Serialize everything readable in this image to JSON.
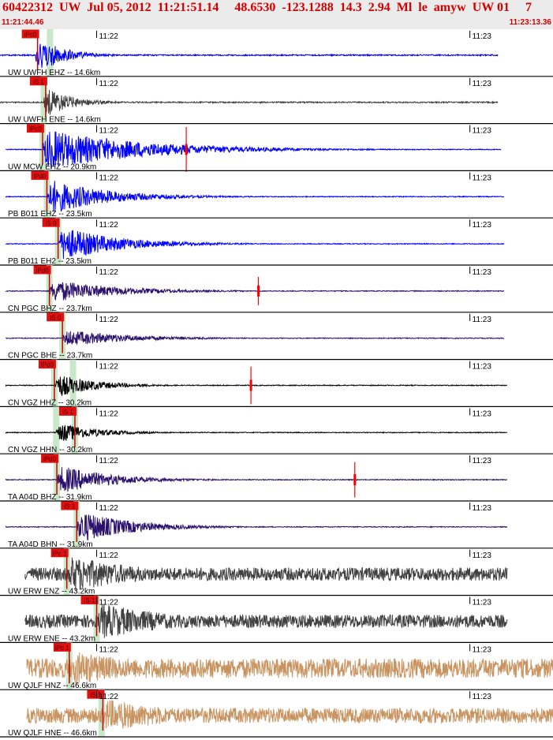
{
  "header": {
    "title": "60422312  UW  Jul 05, 2012  11:21:51.14     48.6530  -123.1288  14.3  2.94  Ml  le  amyw  UW 01     7",
    "start_time": "11:21:44.46",
    "end_time": "11:23:13.36"
  },
  "chart_data": {
    "type": "seismogram",
    "event": {
      "id": "60422312",
      "network": "UW",
      "date": "Jul 05, 2012",
      "origin_time": "11:21:51.14",
      "latitude": 48.653,
      "longitude": -123.1288,
      "depth": 14.3,
      "magnitude": 2.94,
      "magnitude_type": "Ml",
      "event_type": "le",
      "author": "amyw",
      "source": "UW 01",
      "version": 7
    },
    "time_window": {
      "start_s": 44.46,
      "end_s": 133.36,
      "start_label": "11:21:44.46",
      "end_label": "11:23:13.36"
    },
    "minute_ticks": [
      {
        "label": "11:22",
        "t": 60
      },
      {
        "label": "11:23",
        "t": 120
      }
    ],
    "traces": [
      {
        "label": "UW UWFH EHZ -- 14.6km",
        "color": "#0000ff",
        "data_start": 44.46,
        "data_end": 124.5,
        "onset": 50.2,
        "peak": 0.95,
        "noise": 0.03,
        "decay": 4,
        "pick": {
          "label": "iPc0",
          "t": 50.5
        },
        "marks": [
          52.5
        ],
        "spikes": []
      },
      {
        "label": "UW UWFH ENE -- 14.6km",
        "color": "#404040",
        "data_start": 44.46,
        "data_end": 124.5,
        "onset": 51.5,
        "peak": 0.8,
        "noise": 0.03,
        "decay": 4,
        "pick": {
          "label": "iS 1",
          "t": 51.8
        },
        "marks": [
          51.5
        ],
        "spikes": []
      },
      {
        "label": "UW MCW EHZ -- 20.9km",
        "color": "#0000ff",
        "data_start": 45.4,
        "data_end": 125.0,
        "onset": 51.3,
        "peak": 1.0,
        "noise": 0.02,
        "decay": 15,
        "pick": {
          "label": "iPc0",
          "t": 51.3
        },
        "marks": [
          51.3
        ],
        "spikes": [
          {
            "t": 74.4,
            "amp": 0.95
          }
        ]
      },
      {
        "label": "PB B011 EHZ -- 23.5km",
        "color": "#0000ff",
        "data_start": 45.4,
        "data_end": 125.5,
        "onset": 52.0,
        "peak": 0.85,
        "noise": 0.02,
        "decay": 9,
        "pick": {
          "label": "iPd0",
          "t": 52.0
        },
        "marks": [
          52.0
        ],
        "spikes": []
      },
      {
        "label": "PB B011 EH2 -- 23.5km",
        "color": "#0000ff",
        "data_start": 45.4,
        "data_end": 125.5,
        "onset": 53.8,
        "peak": 0.85,
        "noise": 0.02,
        "decay": 9,
        "pick": {
          "label": "iS 0",
          "t": 53.8
        },
        "marks": [
          53.8
        ],
        "spikes": []
      },
      {
        "label": "CN PGC BHZ -- 23.7km",
        "color": "#2a0f6c",
        "data_start": 45.4,
        "data_end": 125.5,
        "onset": 52.4,
        "peak": 0.55,
        "noise": 0.02,
        "decay": 10,
        "pick": {
          "label": "iPd0",
          "t": 52.4
        },
        "marks": [
          52.4
        ],
        "spikes": [
          {
            "t": 86.0,
            "amp": 0.6
          }
        ]
      },
      {
        "label": "CN PGC BHE -- 23.7km",
        "color": "#2a0f6c",
        "data_start": 45.4,
        "data_end": 125.5,
        "onset": 54.5,
        "peak": 0.4,
        "noise": 0.02,
        "decay": 10,
        "pick": {
          "label": "iS 0",
          "t": 54.5
        },
        "marks": [
          54.5
        ],
        "spikes": []
      },
      {
        "label": "CN VGZ HHZ -- 30.2km",
        "color": "#000000",
        "data_start": 45.4,
        "data_end": 126.0,
        "onset": 53.2,
        "peak": 0.6,
        "noise": 0.02,
        "decay": 6,
        "pick": {
          "label": "iPd0",
          "t": 53.2
        },
        "marks": [
          53.2,
          56.2
        ],
        "spikes": [
          {
            "t": 84.8,
            "amp": 0.8
          }
        ]
      },
      {
        "label": "CN VGZ HHN -- 30.2km",
        "color": "#000000",
        "data_start": 45.4,
        "data_end": 126.0,
        "onset": 53.5,
        "peak": 0.5,
        "noise": 0.02,
        "decay": 6,
        "pick": {
          "label": "iS 1",
          "t": 56.5
        },
        "marks": [
          53.5,
          56.5
        ],
        "spikes": []
      },
      {
        "label": "TA A04D BHZ -- 31.9km",
        "color": "#2a0f6c",
        "data_start": 45.4,
        "data_end": 126.0,
        "onset": 53.6,
        "peak": 0.7,
        "noise": 0.02,
        "decay": 8,
        "pick": {
          "label": "iPd0",
          "t": 53.6
        },
        "marks": [
          53.6
        ],
        "spikes": [
          {
            "t": 101.5,
            "amp": 0.75
          }
        ]
      },
      {
        "label": "TA A04D BHN -- 31.9km",
        "color": "#2a0f6c",
        "data_start": 45.4,
        "data_end": 126.0,
        "onset": 56.8,
        "peak": 0.8,
        "noise": 0.02,
        "decay": 8,
        "pick": {
          "label": "iS 1",
          "t": 56.8
        },
        "marks": [
          56.8
        ],
        "spikes": []
      },
      {
        "label": "UW ERW ENZ -- 43.2km",
        "color": "#404040",
        "data_start": 48.5,
        "data_end": 126.0,
        "onset": 55.2,
        "peak": 0.9,
        "noise": 0.3,
        "decay": 12,
        "pick": {
          "label": "iPc 1",
          "t": 55.2
        },
        "marks": [
          55.2
        ],
        "spikes": []
      },
      {
        "label": "UW ERW ENE -- 43.2km",
        "color": "#404040",
        "data_start": 48.5,
        "data_end": 126.0,
        "onset": 60.0,
        "peak": 0.9,
        "noise": 0.3,
        "decay": 12,
        "pick": {
          "label": "iS 1",
          "t": 60.0
        },
        "marks": [
          60.0
        ],
        "spikes": []
      },
      {
        "label": "UW QJLF HNZ -- 46.6km",
        "color": "#c8935f",
        "data_start": 48.8,
        "data_end": 133.36,
        "onset": 55.6,
        "peak": 0.85,
        "noise": 0.45,
        "decay": 14,
        "pick": {
          "label": "iPc 1",
          "t": 55.6
        },
        "marks": [
          55.6
        ],
        "spikes": []
      },
      {
        "label": "UW QJLF HNE -- 46.6km",
        "color": "#c8935f",
        "data_start": 48.8,
        "data_end": 133.36,
        "onset": 60.8,
        "peak": 0.8,
        "noise": 0.35,
        "decay": 14,
        "pick": {
          "label": "iS 1",
          "t": 61.0
        },
        "marks": [
          60.8
        ],
        "spikes": []
      }
    ]
  }
}
